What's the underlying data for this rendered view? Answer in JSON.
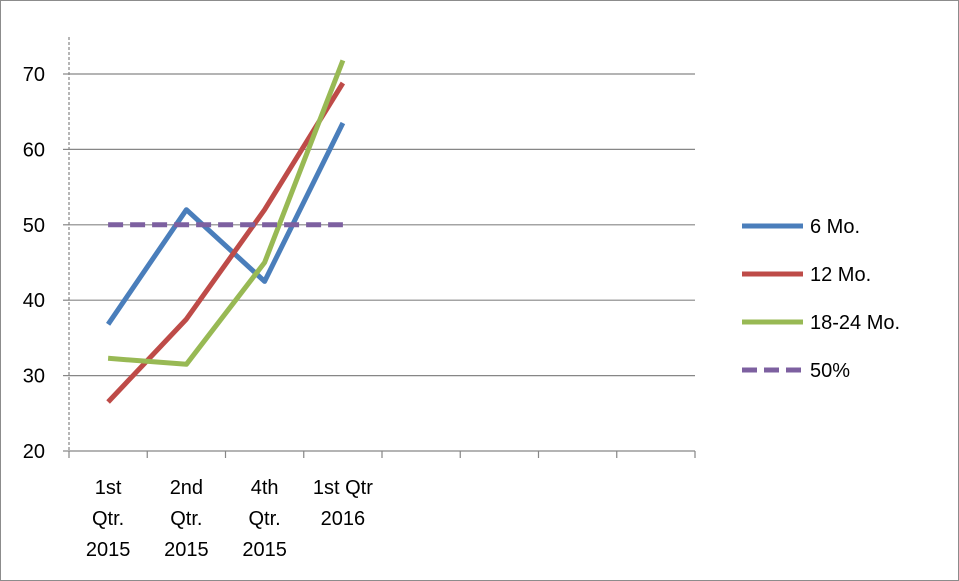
{
  "chart_data": {
    "type": "line",
    "categories": [
      "1st Qtr. 2015",
      "2nd Qtr. 2015",
      "4th Qtr. 2015",
      "1st Qtr 2016"
    ],
    "category_lines": [
      [
        "1st",
        "Qtr.",
        "2015"
      ],
      [
        "2nd",
        "Qtr.",
        "2015"
      ],
      [
        "4th",
        "Qtr.",
        "2015"
      ],
      [
        "1st Qtr",
        "2016"
      ]
    ],
    "x_slots": 8,
    "ylim": [
      20,
      70
    ],
    "yticks": [
      20,
      30,
      40,
      50,
      60,
      70
    ],
    "grid": true,
    "legend_position": "right",
    "series": [
      {
        "name": "6 Mo.",
        "values": [
          36.8,
          52,
          42.5,
          63.5
        ],
        "color": "#4a7ebb",
        "dash": false
      },
      {
        "name": "12 Mo.",
        "values": [
          26.5,
          37.5,
          52,
          68.8
        ],
        "color": "#be4b48",
        "dash": false
      },
      {
        "name": "18-24 Mo.",
        "values": [
          32.3,
          31.5,
          45,
          71.8
        ],
        "color": "#98b954",
        "dash": false
      },
      {
        "name": "50%",
        "values": [
          50,
          50,
          50,
          50
        ],
        "color": "#7d60a0",
        "dash": true
      }
    ]
  }
}
